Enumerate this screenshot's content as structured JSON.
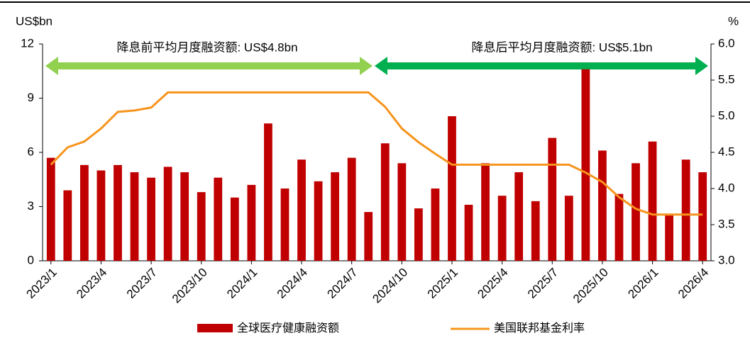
{
  "chart_data": {
    "type": "bar",
    "y_label": "US$bn",
    "y2_label": "%",
    "annotations": [
      "降息前平均月度融资额: US$4.8bn",
      "降息后平均月度融资额: US$5.1bn"
    ],
    "categories": [
      "2023/1",
      null,
      null,
      "2023/4",
      null,
      null,
      "2023/7",
      null,
      null,
      "2023/10",
      null,
      null,
      "2024/1",
      null,
      null,
      "2024/4",
      null,
      null,
      "2024/7",
      null,
      null,
      "2024/10",
      null,
      null,
      "2025/1",
      null,
      null,
      "2025/4",
      null,
      null,
      "2025/7",
      null,
      null,
      "2025/10",
      null,
      null,
      "2026/1",
      null,
      null,
      "2026/4"
    ],
    "series": [
      {
        "name": "全球医疗健康融资额",
        "type": "bar",
        "color": "#c00000",
        "values": [
          5.7,
          3.9,
          5.3,
          5.0,
          5.3,
          4.9,
          4.6,
          5.2,
          4.9,
          3.8,
          4.6,
          3.5,
          4.2,
          7.6,
          4.0,
          5.6,
          4.4,
          4.9,
          5.7,
          2.7,
          6.5,
          5.4,
          2.9,
          4.0,
          8.0,
          3.1,
          5.4,
          3.6,
          4.9,
          3.3,
          6.8,
          3.6,
          10.6,
          6.1,
          3.7,
          5.4,
          6.6,
          2.6,
          5.6,
          4.9
        ]
      },
      {
        "name": "美国联邦基金利率",
        "type": "line",
        "axis": "y2",
        "color": "#f7941d",
        "values": [
          4.33,
          4.57,
          4.65,
          4.83,
          5.06,
          5.08,
          5.12,
          5.33,
          5.33,
          5.33,
          5.33,
          5.33,
          5.33,
          5.33,
          5.33,
          5.33,
          5.33,
          5.33,
          5.33,
          5.33,
          5.13,
          4.83,
          4.64,
          4.48,
          4.33,
          4.33,
          4.33,
          4.33,
          4.33,
          4.33,
          4.33,
          4.33,
          4.22,
          4.09,
          3.88,
          3.72,
          3.64,
          3.64,
          3.64,
          3.64
        ]
      }
    ],
    "ylim": [
      0,
      12
    ],
    "yticks": [
      0,
      3,
      6,
      9,
      12
    ],
    "y2lim": [
      3.0,
      6.0
    ],
    "y2ticks": [
      {
        "value": 3.0,
        "label": "3.0"
      },
      {
        "value": 3.5,
        "label": "3.5"
      },
      {
        "value": 4.0,
        "label": "4.0"
      },
      {
        "value": 4.5,
        "label": "4.5"
      },
      {
        "value": 5.0,
        "label": "5.0"
      },
      {
        "value": 5.5,
        "label": "5.5"
      },
      {
        "value": 6.0,
        "label": "6.0"
      }
    ],
    "grid": false
  }
}
